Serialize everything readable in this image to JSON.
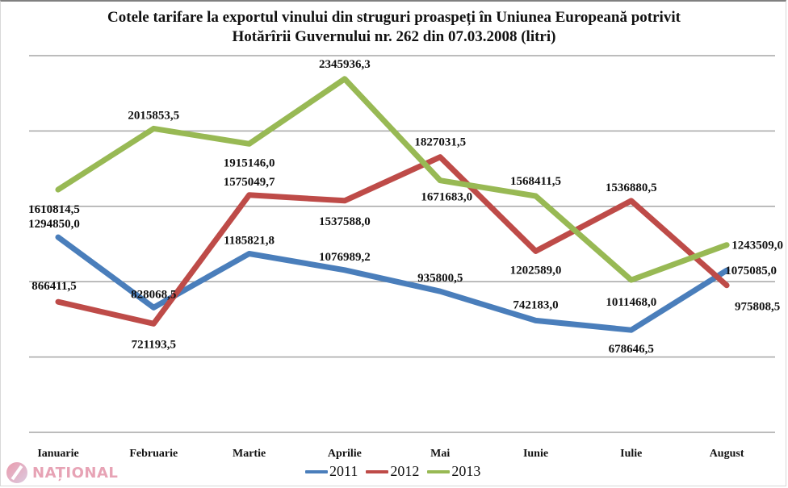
{
  "chart_data": {
    "type": "line",
    "title": "Cotele tarifare la exportul vinului din struguri proaspeți în Uniunea Europeană potrivit Hotărîrii Guvernului nr. 262  din  07.03.2008 (litri)",
    "title_lines": [
      "Cotele tarifare la exportul vinului din struguri proaspeți în Uniunea Europeană potrivit",
      "Hotărîrii Guvernului nr. 262  din  07.03.2008 (litri)"
    ],
    "xlabel": "",
    "ylabel": "",
    "categories": [
      "Ianuarie",
      "Februarie",
      "Martie",
      "Aprilie",
      "Mai",
      "Iunie",
      "Iulie",
      "August"
    ],
    "ylim": [
      0,
      2500000
    ],
    "y_gridlines": [
      0,
      500000,
      1000000,
      1500000,
      2000000,
      2500000
    ],
    "y_tick_labels_visible": false,
    "grid": true,
    "legend_position": "bottom",
    "series": [
      {
        "name": "2011",
        "color": "#4a7ebb",
        "values": [
          1294850.0,
          828068.5,
          1185821.8,
          1076989.2,
          935800.5,
          742183.0,
          678646.5,
          1075085.0
        ],
        "labels": [
          "1294850,0",
          "828068,5",
          "1185821,8",
          "1076989,2",
          "935800,5",
          "742183,0",
          "678646,5",
          "1075085,0"
        ]
      },
      {
        "name": "2012",
        "color": "#be4b48",
        "values": [
          866411.5,
          721193.5,
          1575049.7,
          1537588.0,
          1827031.5,
          1202589.0,
          1536880.5,
          975808.5
        ],
        "labels": [
          "866411,5",
          "721193,5",
          "1575049,7",
          "1537588,0",
          "1827031,5",
          "1202589,0",
          "1536880,5",
          "975808,5"
        ]
      },
      {
        "name": "2013",
        "color": "#98b954",
        "values": [
          1610814.5,
          2015853.5,
          1915146.0,
          2345936.3,
          1671683.0,
          1568411.5,
          1011468.0,
          1243509.0
        ],
        "labels": [
          "1610814,5",
          "2015853,5",
          "1915146,0",
          "2345936,3",
          "1671683,0",
          "1568411,5",
          "1011468,0",
          "1243509,0"
        ]
      }
    ]
  },
  "watermark": {
    "text": "NAȚIONAL"
  }
}
